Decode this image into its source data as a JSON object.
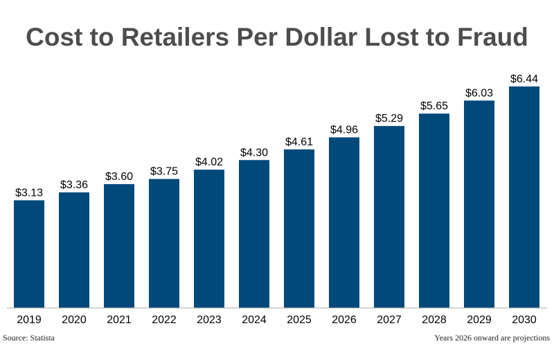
{
  "chart_data": {
    "type": "bar",
    "title": "Cost to Retailers Per Dollar Lost to Fraud",
    "categories": [
      "2019",
      "2020",
      "2021",
      "2022",
      "2023",
      "2024",
      "2025",
      "2026",
      "2027",
      "2028",
      "2029",
      "2030"
    ],
    "values": [
      3.13,
      3.36,
      3.6,
      3.75,
      4.02,
      4.3,
      4.61,
      4.96,
      5.29,
      5.65,
      6.03,
      6.44
    ],
    "data_labels": [
      "$3.13",
      "$3.36",
      "$3.60",
      "$3.75",
      "$4.02",
      "$4.30",
      "$4.61",
      "$4.96",
      "$5.29",
      "$5.65",
      "$6.03",
      "$6.44"
    ],
    "xlabel": "",
    "ylabel": "",
    "ylim": [
      0,
      7
    ],
    "grid": false,
    "legend": "none",
    "bar_color": "#00497b"
  },
  "footer": {
    "source": "Source: Statista",
    "note": "Years 2026 onward are projections"
  },
  "colors": {
    "title": "#4d4d4d",
    "axis": "#aaaaaa",
    "text": "#000000"
  }
}
